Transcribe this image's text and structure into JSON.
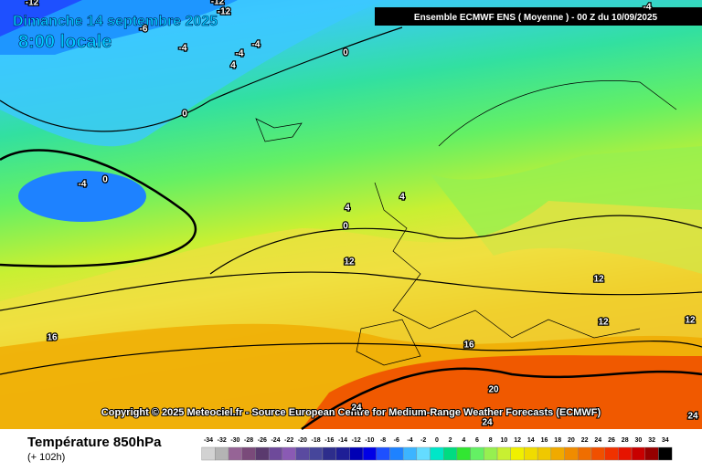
{
  "header": {
    "title": "Dimanche 14 septembre 2025",
    "time": "8:00 locale",
    "model": "Ensemble ECMWF ENS  ( Moyenne )  -  00 Z du 10/09/2025"
  },
  "contour_labels": [
    -12,
    -12,
    -12,
    -6,
    -4,
    -4,
    -4,
    4,
    0,
    0,
    0,
    -4,
    4,
    4,
    0,
    12,
    12,
    12,
    12,
    16,
    16,
    20,
    24,
    24,
    24,
    -4
  ],
  "copyright": "Copyright © 2025 Meteociel.fr - Source European Centre for Medium-Range Weather Forecasts (ECMWF)",
  "footer": {
    "variable": "Température 850hPa",
    "lead": "(+ 102h)"
  },
  "scale": {
    "ticks": [
      -34,
      -32,
      -30,
      -28,
      -26,
      -24,
      -22,
      -20,
      -18,
      -16,
      -14,
      -12,
      -10,
      -8,
      -6,
      -4,
      -2,
      0,
      2,
      4,
      6,
      8,
      10,
      12,
      14,
      16,
      18,
      20,
      22,
      24,
      26,
      28,
      30,
      32,
      34
    ],
    "colors": [
      "#d2d2d2",
      "#b4b4b4",
      "#966496",
      "#7a4a7a",
      "#5a3a6e",
      "#6e4a9a",
      "#8a5ab4",
      "#5a4aa0",
      "#46469b",
      "#2d2d8c",
      "#1e1e96",
      "#0000b4",
      "#0000e6",
      "#1e50ff",
      "#1e82ff",
      "#3cb4ff",
      "#64dcff",
      "#00e6c8",
      "#00dc82",
      "#32e632",
      "#64f064",
      "#96f050",
      "#c8f032",
      "#f0f000",
      "#f0dc00",
      "#f0c800",
      "#f0aa00",
      "#f08c00",
      "#f06e00",
      "#f05000",
      "#f03200",
      "#e61400",
      "#c80000",
      "#960000",
      "#000000"
    ]
  }
}
